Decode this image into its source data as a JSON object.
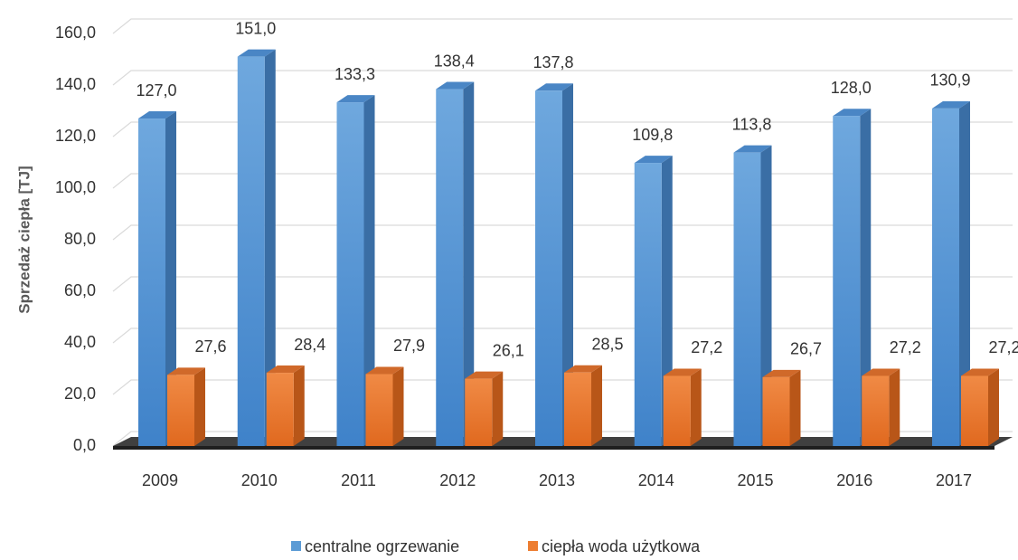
{
  "chart_data": {
    "type": "bar3d",
    "y_label": "Sprzedaż ciepła  [TJ]",
    "categories": [
      "2009",
      "2010",
      "2011",
      "2012",
      "2013",
      "2014",
      "2015",
      "2016",
      "2017"
    ],
    "series": [
      {
        "name": "centralne ogrzewanie",
        "color": "#5b9bd5",
        "values": [
          127.0,
          151.0,
          133.3,
          138.4,
          137.8,
          109.8,
          113.8,
          128.0,
          130.9
        ],
        "value_labels": [
          "127,0",
          "151,0",
          "133,3",
          "138,4",
          "137,8",
          "109,8",
          "113,8",
          "128,0",
          "130,9"
        ]
      },
      {
        "name": "ciepła woda użytkowa",
        "color": "#ed7d31",
        "values": [
          27.6,
          28.4,
          27.9,
          26.1,
          28.5,
          27.2,
          26.7,
          27.2,
          27.2
        ],
        "value_labels": [
          "27,6",
          "28,4",
          "27,9",
          "26,1",
          "28,5",
          "27,2",
          "26,7",
          "27,2",
          "27,2"
        ]
      }
    ],
    "ylim": [
      0,
      160
    ],
    "yticks": [
      {
        "value": 0,
        "label": "0,0"
      },
      {
        "value": 20,
        "label": "20,0"
      },
      {
        "value": 40,
        "label": "40,0"
      },
      {
        "value": 60,
        "label": "60,0"
      },
      {
        "value": 80,
        "label": "80,0"
      },
      {
        "value": 100,
        "label": "100,0"
      },
      {
        "value": 120,
        "label": "120,0"
      },
      {
        "value": 140,
        "label": "140,0"
      },
      {
        "value": 160,
        "label": "160,0"
      }
    ],
    "grid": true,
    "legend": "bottom"
  }
}
